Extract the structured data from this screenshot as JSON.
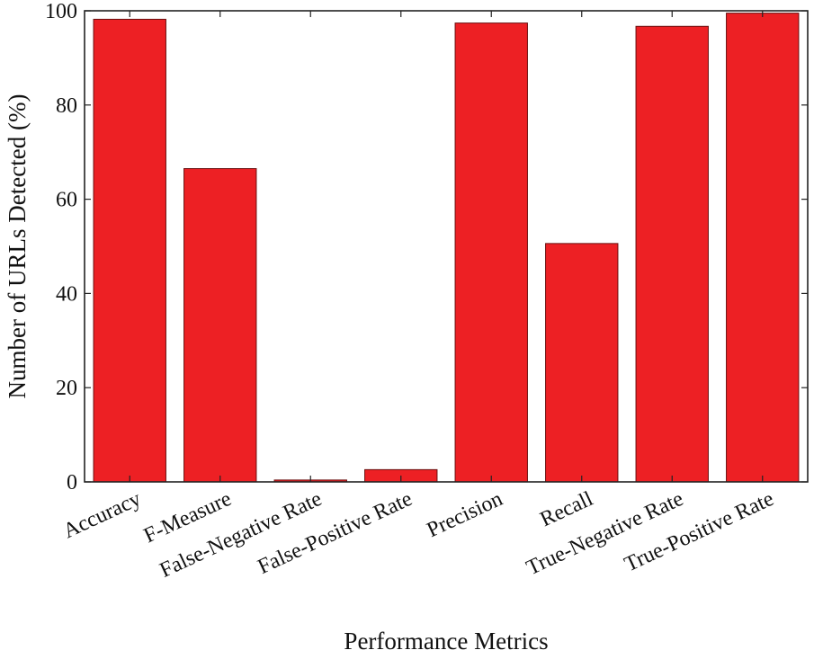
{
  "chart_data": {
    "type": "bar",
    "categories": [
      "Accuracy",
      "F-Measure",
      "False-Negative Rate",
      "False-Positive Rate",
      "Precision",
      "Recall",
      "True-Negative Rate",
      "True-Positive Rate"
    ],
    "values": [
      98.2,
      66.5,
      0.4,
      2.6,
      97.4,
      50.6,
      96.7,
      99.5
    ],
    "xlabel": "Performance Metrics",
    "ylabel": "Number of URLs Detected (%)",
    "ylim": [
      0,
      100
    ],
    "yticks": [
      0,
      20,
      40,
      60,
      80,
      100
    ],
    "bar_color": "#ed2024",
    "grid": false
  }
}
